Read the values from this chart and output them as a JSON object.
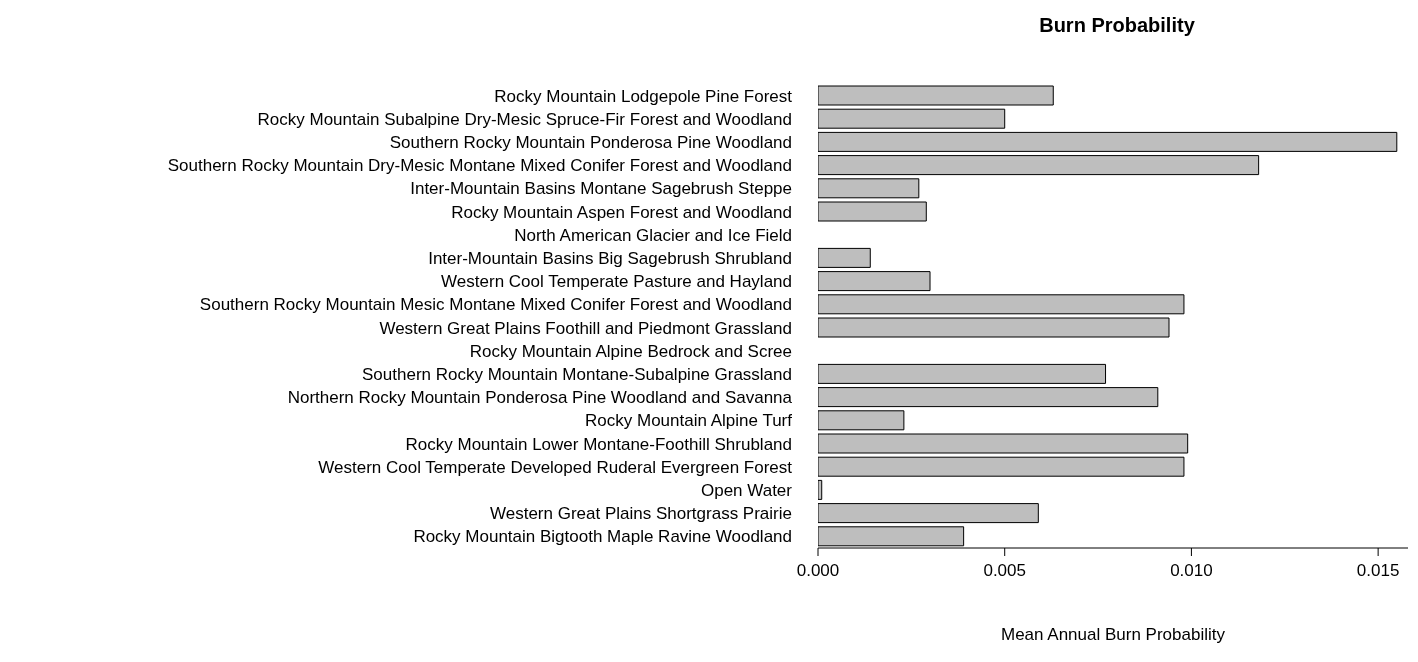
{
  "chart_data": {
    "type": "bar",
    "orientation": "horizontal",
    "title": "Burn Probability",
    "xlabel": "Mean Annual Burn Probability",
    "categories": [
      "Rocky Mountain Lodgepole Pine Forest",
      "Rocky Mountain Subalpine Dry-Mesic Spruce-Fir Forest and Woodland",
      "Southern Rocky Mountain Ponderosa Pine Woodland",
      "Southern Rocky Mountain Dry-Mesic Montane Mixed Conifer Forest and Woodland",
      "Inter-Mountain Basins Montane Sagebrush Steppe",
      "Rocky Mountain Aspen Forest and Woodland",
      "North American Glacier and Ice Field",
      "Inter-Mountain Basins Big Sagebrush Shrubland",
      "Western Cool Temperate Pasture and Hayland",
      "Southern Rocky Mountain Mesic Montane Mixed Conifer Forest and Woodland",
      "Western Great Plains Foothill and Piedmont Grassland",
      "Rocky Mountain Alpine Bedrock and Scree",
      "Southern Rocky Mountain Montane-Subalpine Grassland",
      "Northern Rocky Mountain Ponderosa Pine Woodland and Savanna",
      "Rocky Mountain Alpine Turf",
      "Rocky Mountain Lower Montane-Foothill Shrubland",
      "Western Cool Temperate Developed Ruderal Evergreen Forest",
      "Open Water",
      "Western Great Plains Shortgrass Prairie",
      "Rocky Mountain Bigtooth Maple Ravine Woodland"
    ],
    "values": [
      0.0063,
      0.005,
      0.0155,
      0.0118,
      0.0027,
      0.0029,
      0,
      0.0014,
      0.003,
      0.0098,
      0.0094,
      0,
      0.0077,
      0.0091,
      0.0023,
      0.0099,
      0.0098,
      0.0001,
      0.0059,
      0.0039
    ],
    "color": "#bebebe",
    "xlim": [
      0,
      0.0158
    ],
    "xticks": [
      {
        "value": 0,
        "label": "0.000"
      },
      {
        "value": 0.005,
        "label": "0.005"
      },
      {
        "value": 0.01,
        "label": "0.010"
      },
      {
        "value": 0.015,
        "label": "0.015"
      }
    ],
    "grid": false
  }
}
